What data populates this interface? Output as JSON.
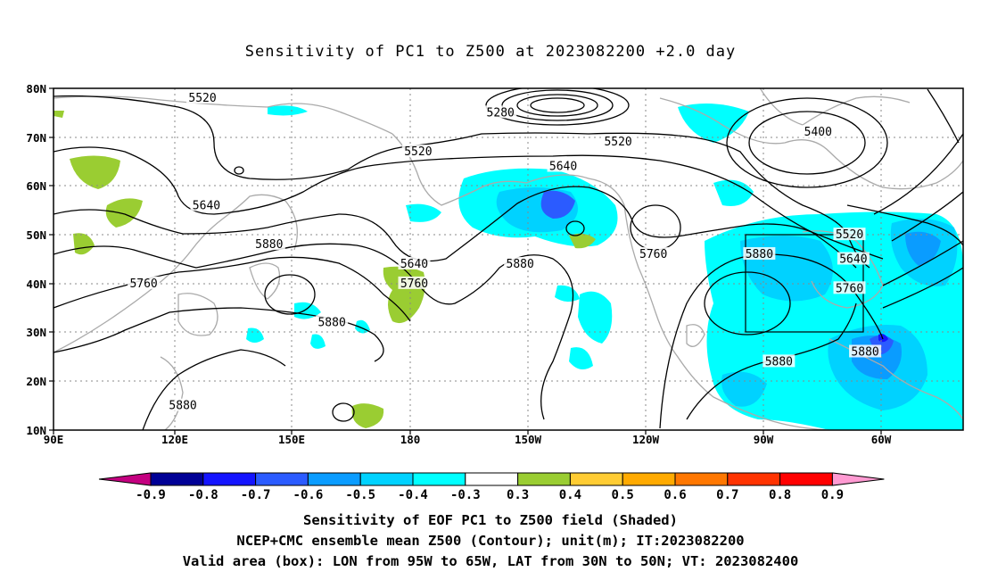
{
  "title": "Sensitivity of PC1 to Z500 at 2023082200 +2.0 day",
  "map": {
    "lon_labels": [
      "90E",
      "120E",
      "150E",
      "180",
      "150W",
      "120W",
      "90W",
      "60W"
    ],
    "lat_labels": [
      "80N",
      "70N",
      "60N",
      "50N",
      "40N",
      "30N",
      "20N",
      "10N"
    ],
    "contour_labels": [
      {
        "text": "5520",
        "lon": 128,
        "lat": 78
      },
      {
        "text": "5280",
        "lon": 204,
        "lat": 75
      },
      {
        "text": "5520",
        "lon": 183,
        "lat": 67
      },
      {
        "text": "5520",
        "lon": 234,
        "lat": 69
      },
      {
        "text": "5400",
        "lon": 285,
        "lat": 71
      },
      {
        "text": "5640",
        "lon": 220,
        "lat": 64
      },
      {
        "text": "5640",
        "lon": 129,
        "lat": 56
      },
      {
        "text": "5880",
        "lon": 145,
        "lat": 48
      },
      {
        "text": "5640",
        "lon": 182,
        "lat": 44
      },
      {
        "text": "5760",
        "lon": 182,
        "lat": 40
      },
      {
        "text": "5880",
        "lon": 209,
        "lat": 44
      },
      {
        "text": "5760",
        "lon": 243,
        "lat": 46
      },
      {
        "text": "5880",
        "lon": 270,
        "lat": 46
      },
      {
        "text": "5520",
        "lon": 293,
        "lat": 50
      },
      {
        "text": "5640",
        "lon": 294,
        "lat": 45
      },
      {
        "text": "5760",
        "lon": 293,
        "lat": 39
      },
      {
        "text": "5760",
        "lon": 113,
        "lat": 40
      },
      {
        "text": "5880",
        "lon": 161,
        "lat": 32
      },
      {
        "text": "5880",
        "lon": 275,
        "lat": 24
      },
      {
        "text": "5880",
        "lon": 297,
        "lat": 26
      },
      {
        "text": "5880",
        "lon": 123,
        "lat": 15
      }
    ]
  },
  "colorbar": {
    "labels": [
      "-0.9",
      "-0.8",
      "-0.7",
      "-0.6",
      "-0.5",
      "-0.4",
      "-0.3",
      "0.3",
      "0.4",
      "0.5",
      "0.6",
      "0.7",
      "0.8",
      "0.9"
    ],
    "colors": [
      "#000096",
      "#1414ff",
      "#2b5bff",
      "#0a9cff",
      "#00d2ff",
      "#00ffff",
      "#ffffff",
      "#9acd32",
      "#ffcc33",
      "#ffaa00",
      "#ff7700",
      "#ff3300",
      "#ff0000"
    ],
    "low_end_color": "#c40080",
    "high_end_color": "#ff9ad2"
  },
  "captions": {
    "line1": "Sensitivity of EOF PC1 to Z500 field (Shaded)",
    "line2": "NCEP+CMC ensemble mean Z500 (Contour); unit(m); IT:2023082200",
    "line3": "Valid area (box): LON from 95W to 65W, LAT from 30N to 50N; VT: 2023082400"
  }
}
